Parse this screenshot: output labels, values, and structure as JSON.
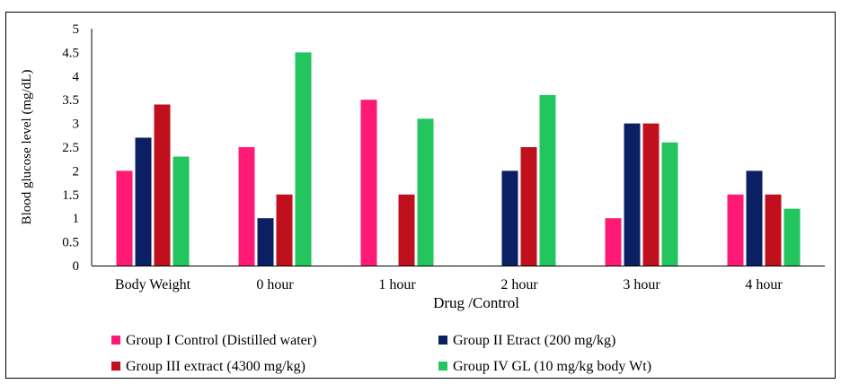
{
  "chart_data": {
    "type": "bar",
    "title": "",
    "xlabel": "Drug /Control",
    "ylabel": "Blood glucose level (mg/dL)",
    "ylim": [
      0,
      5
    ],
    "yticks": [
      "0",
      "0.5",
      "1",
      "1.5",
      "2",
      "2.5",
      "3",
      "3.5",
      "4",
      "4.5",
      "5"
    ],
    "categories": [
      "Body Weight",
      "0 hour",
      "1 hour",
      "2 hour",
      "3 hour",
      "4 hour"
    ],
    "series": [
      {
        "name": "Group I Control (Distilled water)",
        "color": "#ff1a75",
        "values": [
          2.0,
          2.5,
          3.5,
          null,
          1.0,
          1.5
        ]
      },
      {
        "name": "Group II Etract (200 mg/kg)",
        "color": "#0b1f63",
        "values": [
          2.7,
          1.0,
          null,
          2.0,
          3.0,
          2.0
        ]
      },
      {
        "name": "Group III extract (4300 mg/kg)",
        "color": "#c0101e",
        "values": [
          3.4,
          1.5,
          1.5,
          2.5,
          3.0,
          1.5
        ]
      },
      {
        "name": "Group IV GL (10 mg/kg body Wt)",
        "color": "#22c55e",
        "values": [
          2.3,
          4.5,
          3.1,
          3.6,
          2.6,
          1.2
        ]
      }
    ],
    "grid": false,
    "legend_position": "bottom"
  }
}
